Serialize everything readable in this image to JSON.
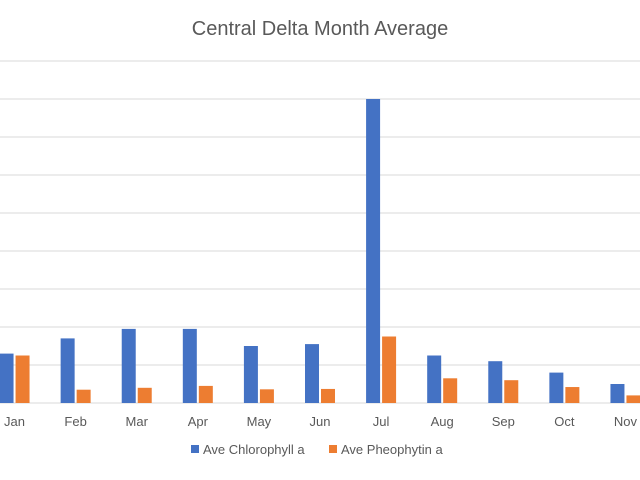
{
  "chart_data": {
    "type": "bar",
    "title": "Central Delta Month Average",
    "categories": [
      "Jan",
      "Feb",
      "Mar",
      "Apr",
      "May",
      "Jun",
      "Jul",
      "Aug",
      "Sep",
      "Oct",
      "Nov"
    ],
    "series": [
      {
        "name": "Ave Chlorophyll a",
        "color": "#4472c4",
        "values": [
          1.3,
          1.7,
          1.95,
          1.95,
          1.5,
          1.55,
          8.0,
          1.25,
          1.1,
          0.8,
          0.5
        ]
      },
      {
        "name": "Ave Pheophytin a",
        "color": "#ed7d31",
        "values": [
          1.25,
          0.35,
          0.4,
          0.45,
          0.36,
          0.37,
          1.75,
          0.65,
          0.6,
          0.42,
          0.2
        ]
      }
    ],
    "ylim": [
      0,
      9
    ],
    "grid": true,
    "legend_position": "bottom"
  }
}
